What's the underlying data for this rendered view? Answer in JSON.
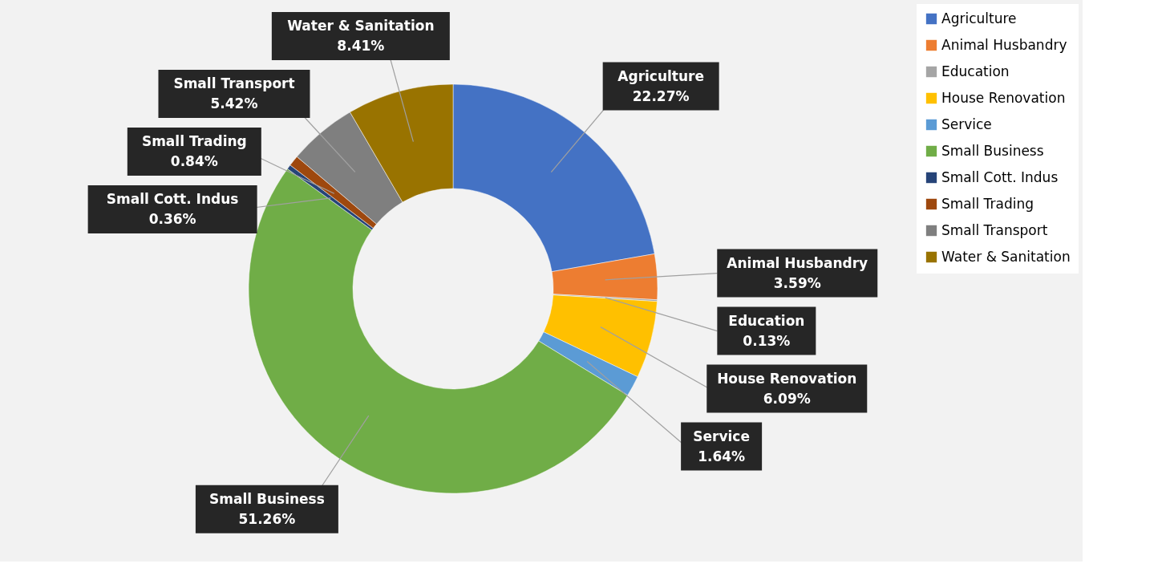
{
  "chart_data": {
    "type": "donut",
    "categories": [
      "Agriculture",
      "Animal Husbandry",
      "Education",
      "House Renovation",
      "Service",
      "Small Business",
      "Small Cott. Indus",
      "Small Trading",
      "Small Transport",
      "Water & Sanitation"
    ],
    "values": [
      22.27,
      3.59,
      0.13,
      6.09,
      1.64,
      51.26,
      0.36,
      0.84,
      5.42,
      8.41
    ],
    "value_labels": [
      "22.27%",
      "3.59%",
      "0.13%",
      "6.09%",
      "1.64%",
      "51.26%",
      "0.36%",
      "0.84%",
      "5.42%",
      "8.41%"
    ],
    "colors": [
      "#4472c4",
      "#ed7d31",
      "#a5a5a5",
      "#ffc000",
      "#5b9bd5",
      "#70ad47",
      "#264478",
      "#9e480e",
      "#7f7f7f",
      "#997300"
    ],
    "legend": "right"
  }
}
